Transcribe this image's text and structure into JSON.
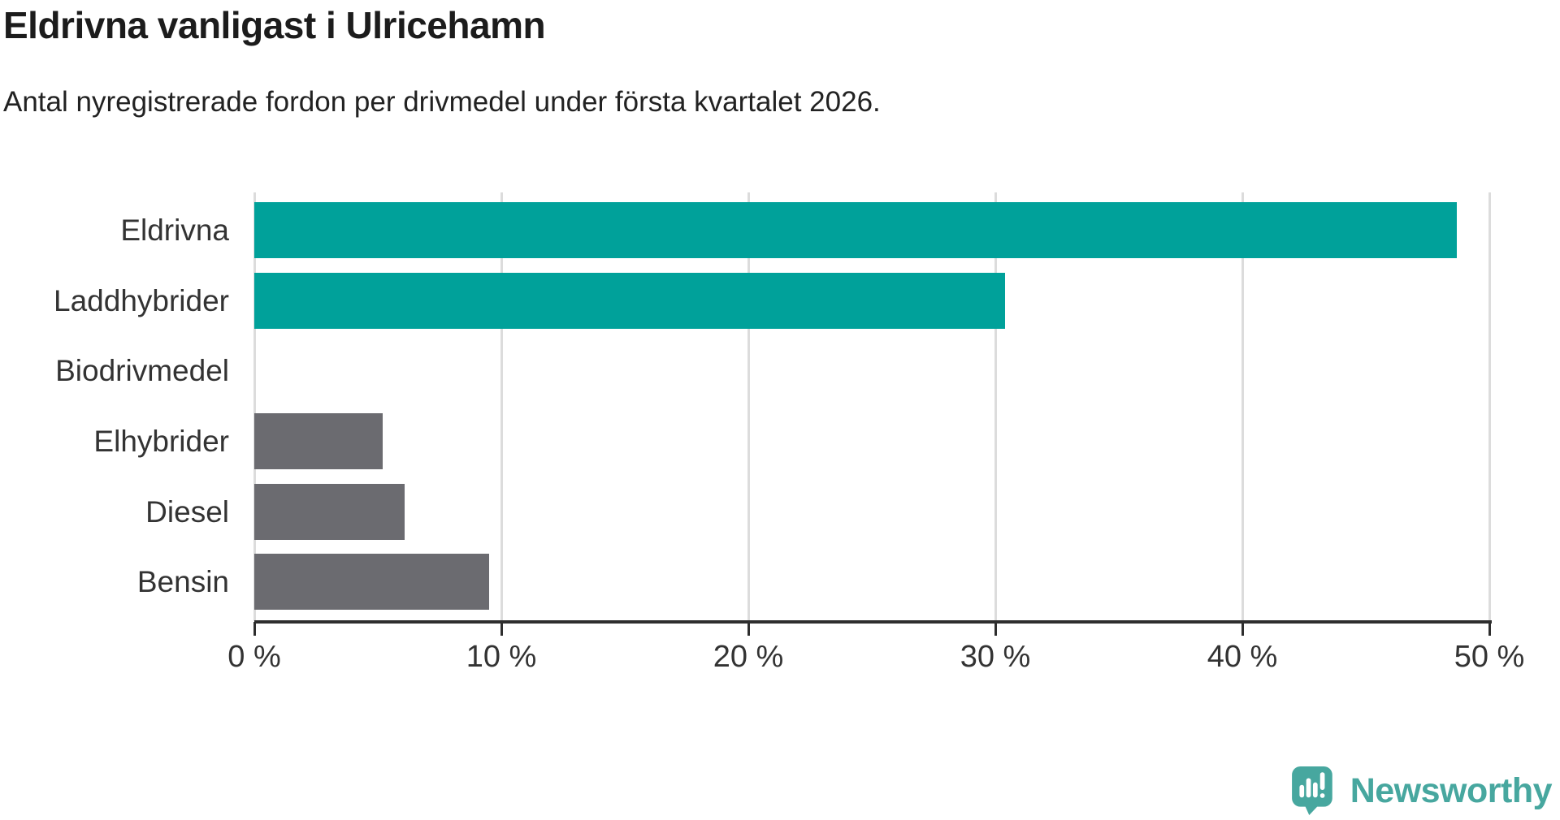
{
  "title": "Eldrivna vanligast i Ulricehamn",
  "subtitle": "Antal nyregistrerade fordon per drivmedel under första kvartalet 2026.",
  "branding": {
    "logo_text": "Newsworthy",
    "logo_icon": "speech-bubble-bar-chart-icon",
    "logo_color": "#47a79f"
  },
  "colors": {
    "teal_bar": "#00a19a",
    "gray_bar": "#6b6b70",
    "gridline": "#dcdcdc",
    "axis": "#2e2e2e",
    "text": "#333333"
  },
  "chart_data": {
    "type": "bar",
    "orientation": "horizontal",
    "title": "Eldrivna vanligast i Ulricehamn",
    "subtitle": "Antal nyregistrerade fordon per drivmedel under första kvartalet 2026.",
    "categories": [
      "Eldrivna",
      "Laddhybrider",
      "Biodrivmedel",
      "Elhybrider",
      "Diesel",
      "Bensin"
    ],
    "values": [
      48.7,
      30.4,
      0,
      5.2,
      6.1,
      9.5
    ],
    "bar_colors": [
      "#00a19a",
      "#00a19a",
      "#6b6b70",
      "#6b6b70",
      "#6b6b70",
      "#6b6b70"
    ],
    "unit": "%",
    "xlim": [
      0,
      50
    ],
    "x_ticks": [
      0,
      10,
      20,
      30,
      40,
      50
    ],
    "x_tick_labels": [
      "0 %",
      "10 %",
      "20 %",
      "30 %",
      "40 %",
      "50 %"
    ],
    "grid": "vertical-only",
    "legend": "none"
  }
}
